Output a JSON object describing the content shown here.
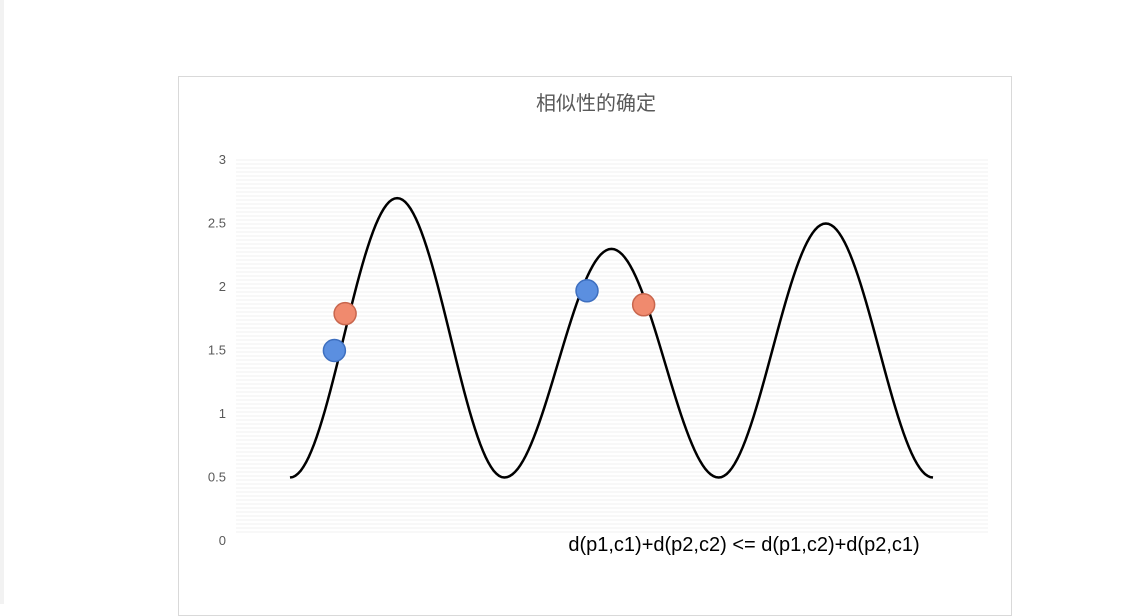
{
  "chart_data": {
    "type": "line",
    "title": "相似性的确定",
    "xlabel": "",
    "ylabel": "",
    "ylim": [
      0,
      3
    ],
    "yticks": [
      "0",
      "0.5",
      "1",
      "1.5",
      "2",
      "2.5",
      "3"
    ],
    "grid": "horizontal (dense, light)",
    "legend": "none",
    "series": [
      {
        "values": [
          [
            0.0,
            0.5
          ],
          [
            0.7,
            2.7
          ],
          [
            1.4,
            0.5
          ],
          [
            2.1,
            2.3
          ],
          [
            2.8,
            0.5
          ],
          [
            3.5,
            2.5
          ],
          [
            4.2,
            0.5
          ]
        ]
      }
    ],
    "points": [
      {
        "x": 0.29,
        "y": 1.5,
        "color": "#5b8fe0"
      },
      {
        "x": 0.36,
        "y": 1.79,
        "color": "#f08a6e"
      },
      {
        "x": 1.94,
        "y": 1.97,
        "color": "#5b8fe0"
      },
      {
        "x": 2.31,
        "y": 1.86,
        "color": "#f08a6e"
      }
    ],
    "annotation": "d(p1,c1)+d(p2,c2) <= d(p1,c2)+d(p2,c1)",
    "colors": {
      "curve": "#000000",
      "blue": "#5b8fe0",
      "orange": "#f08a6e",
      "text": "#595959"
    }
  }
}
